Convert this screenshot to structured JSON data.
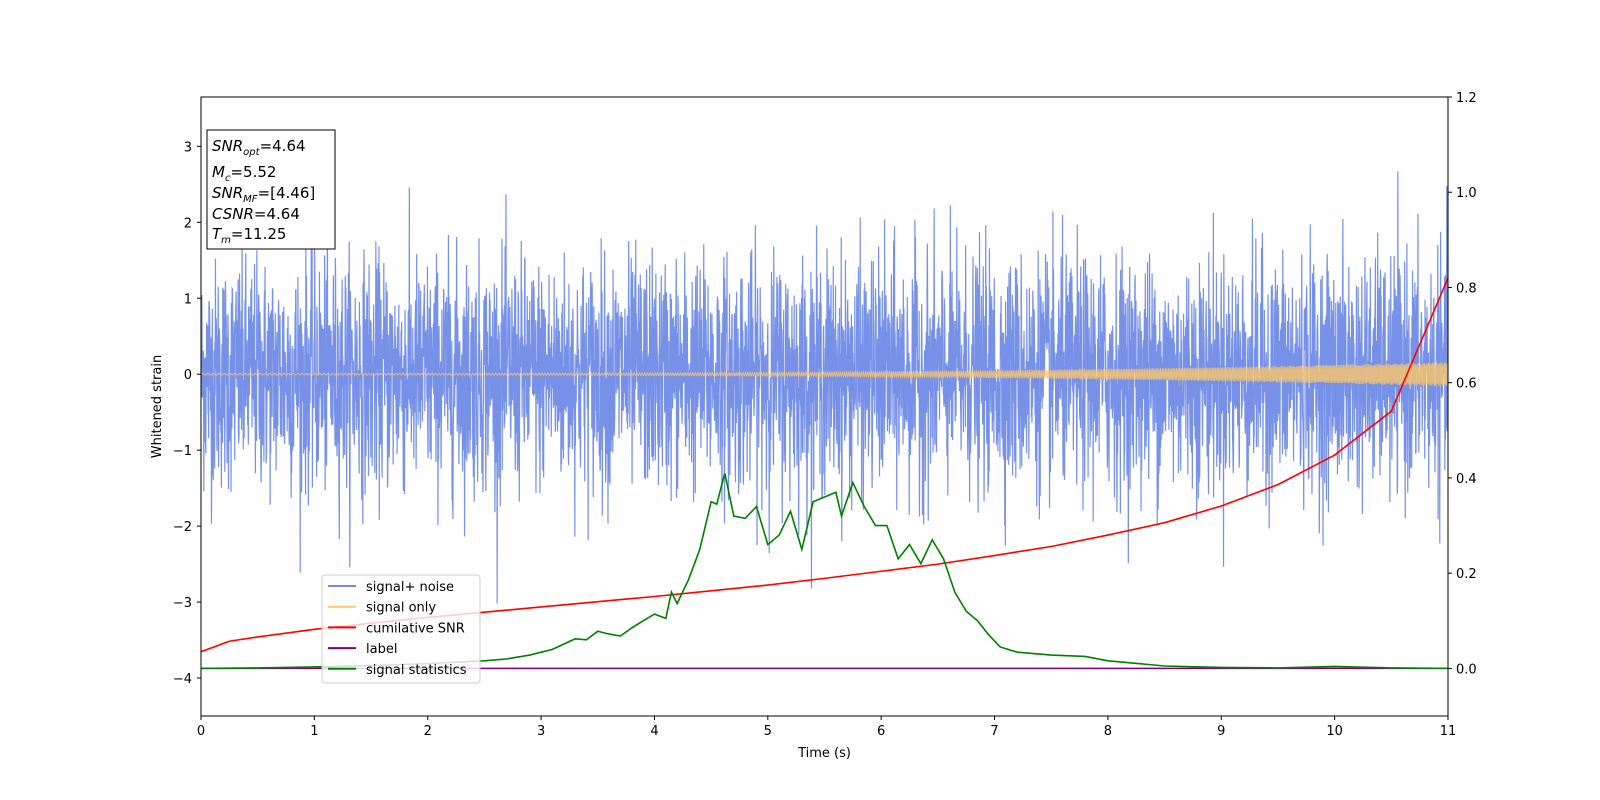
{
  "chart_data": {
    "type": "line",
    "xlabel": "Time (s)",
    "ylabel": "Whitened strain",
    "xlim": [
      0,
      11
    ],
    "ylim_left": [
      -4.5,
      3.65
    ],
    "ylim_right": [
      -0.1,
      1.2
    ],
    "x_ticks": [
      0,
      1,
      2,
      3,
      4,
      5,
      6,
      7,
      8,
      9,
      10,
      11
    ],
    "y_left_ticks": [
      -4,
      -3,
      -2,
      -1,
      0,
      1,
      2,
      3
    ],
    "y_right_ticks": [
      0.0,
      0.2,
      0.4,
      0.6,
      0.8,
      1.0,
      1.2
    ],
    "grid": false,
    "legend_position": "lower-left",
    "info_box": {
      "lines": [
        {
          "sym": "SNR",
          "sub": "opt",
          "val": "=4.64"
        },
        {
          "sym": "M",
          "sub": "c",
          "val": "=5.52"
        },
        {
          "sym": "SNR",
          "sub": "MF",
          "val": "=[4.46]"
        },
        {
          "sym": "CSNR",
          "sub": "",
          "val": "=4.64"
        },
        {
          "sym": "T",
          "sub": "m",
          "val": "=11.25"
        }
      ]
    },
    "series": [
      {
        "name": "signal+ noise",
        "color": "#6f8be6",
        "axis": "left",
        "kind": "noise",
        "amplitude_std": 0.75,
        "sample_rate": 400,
        "x_range": [
          0,
          11
        ]
      },
      {
        "name": "signal only",
        "color": "#fdc76a",
        "axis": "left",
        "kind": "chirp",
        "amplitude_start": 0.01,
        "amplitude_end": 0.16,
        "x_range": [
          0,
          11
        ]
      },
      {
        "name": "cumilative SNR",
        "color": "#ff0000",
        "axis": "right",
        "x": [
          0,
          0.25,
          0.5,
          1,
          1.5,
          2,
          2.5,
          3,
          3.5,
          4,
          4.5,
          5,
          5.5,
          6,
          6.5,
          7,
          7.5,
          8,
          8.5,
          9,
          9.5,
          10,
          10.5,
          11
        ],
        "y": [
          0.035,
          0.057,
          0.066,
          0.082,
          0.095,
          0.107,
          0.118,
          0.129,
          0.14,
          0.151,
          0.163,
          0.175,
          0.189,
          0.204,
          0.219,
          0.237,
          0.256,
          0.28,
          0.306,
          0.341,
          0.386,
          0.448,
          0.54,
          0.82
        ]
      },
      {
        "name": "label",
        "color": "#800080",
        "axis": "right",
        "x": [
          0,
          11
        ],
        "y": [
          0,
          0
        ]
      },
      {
        "name": "signal statistics",
        "color": "#008000",
        "axis": "right",
        "x": [
          0,
          0.5,
          1,
          1.5,
          2,
          2.5,
          2.7,
          2.9,
          3.1,
          3.3,
          3.4,
          3.5,
          3.6,
          3.7,
          3.8,
          3.9,
          4.0,
          4.1,
          4.15,
          4.2,
          4.3,
          4.4,
          4.5,
          4.55,
          4.62,
          4.7,
          4.8,
          4.9,
          5.0,
          5.1,
          5.2,
          5.3,
          5.4,
          5.5,
          5.6,
          5.65,
          5.75,
          5.85,
          5.95,
          6.05,
          6.15,
          6.25,
          6.35,
          6.45,
          6.55,
          6.65,
          6.75,
          6.85,
          6.95,
          7.05,
          7.2,
          7.5,
          7.8,
          8.0,
          8.5,
          9.0,
          9.5,
          10.0,
          10.5,
          11.0
        ],
        "y": [
          0.0,
          0.001,
          0.003,
          0.006,
          0.01,
          0.016,
          0.02,
          0.028,
          0.04,
          0.062,
          0.06,
          0.078,
          0.072,
          0.068,
          0.085,
          0.1,
          0.114,
          0.105,
          0.16,
          0.136,
          0.186,
          0.25,
          0.35,
          0.345,
          0.41,
          0.32,
          0.315,
          0.34,
          0.26,
          0.28,
          0.33,
          0.25,
          0.35,
          0.36,
          0.37,
          0.32,
          0.39,
          0.34,
          0.3,
          0.3,
          0.23,
          0.26,
          0.22,
          0.27,
          0.23,
          0.16,
          0.12,
          0.1,
          0.07,
          0.045,
          0.034,
          0.028,
          0.025,
          0.016,
          0.005,
          0.002,
          0.001,
          0.004,
          0.001,
          0.0
        ]
      }
    ]
  }
}
